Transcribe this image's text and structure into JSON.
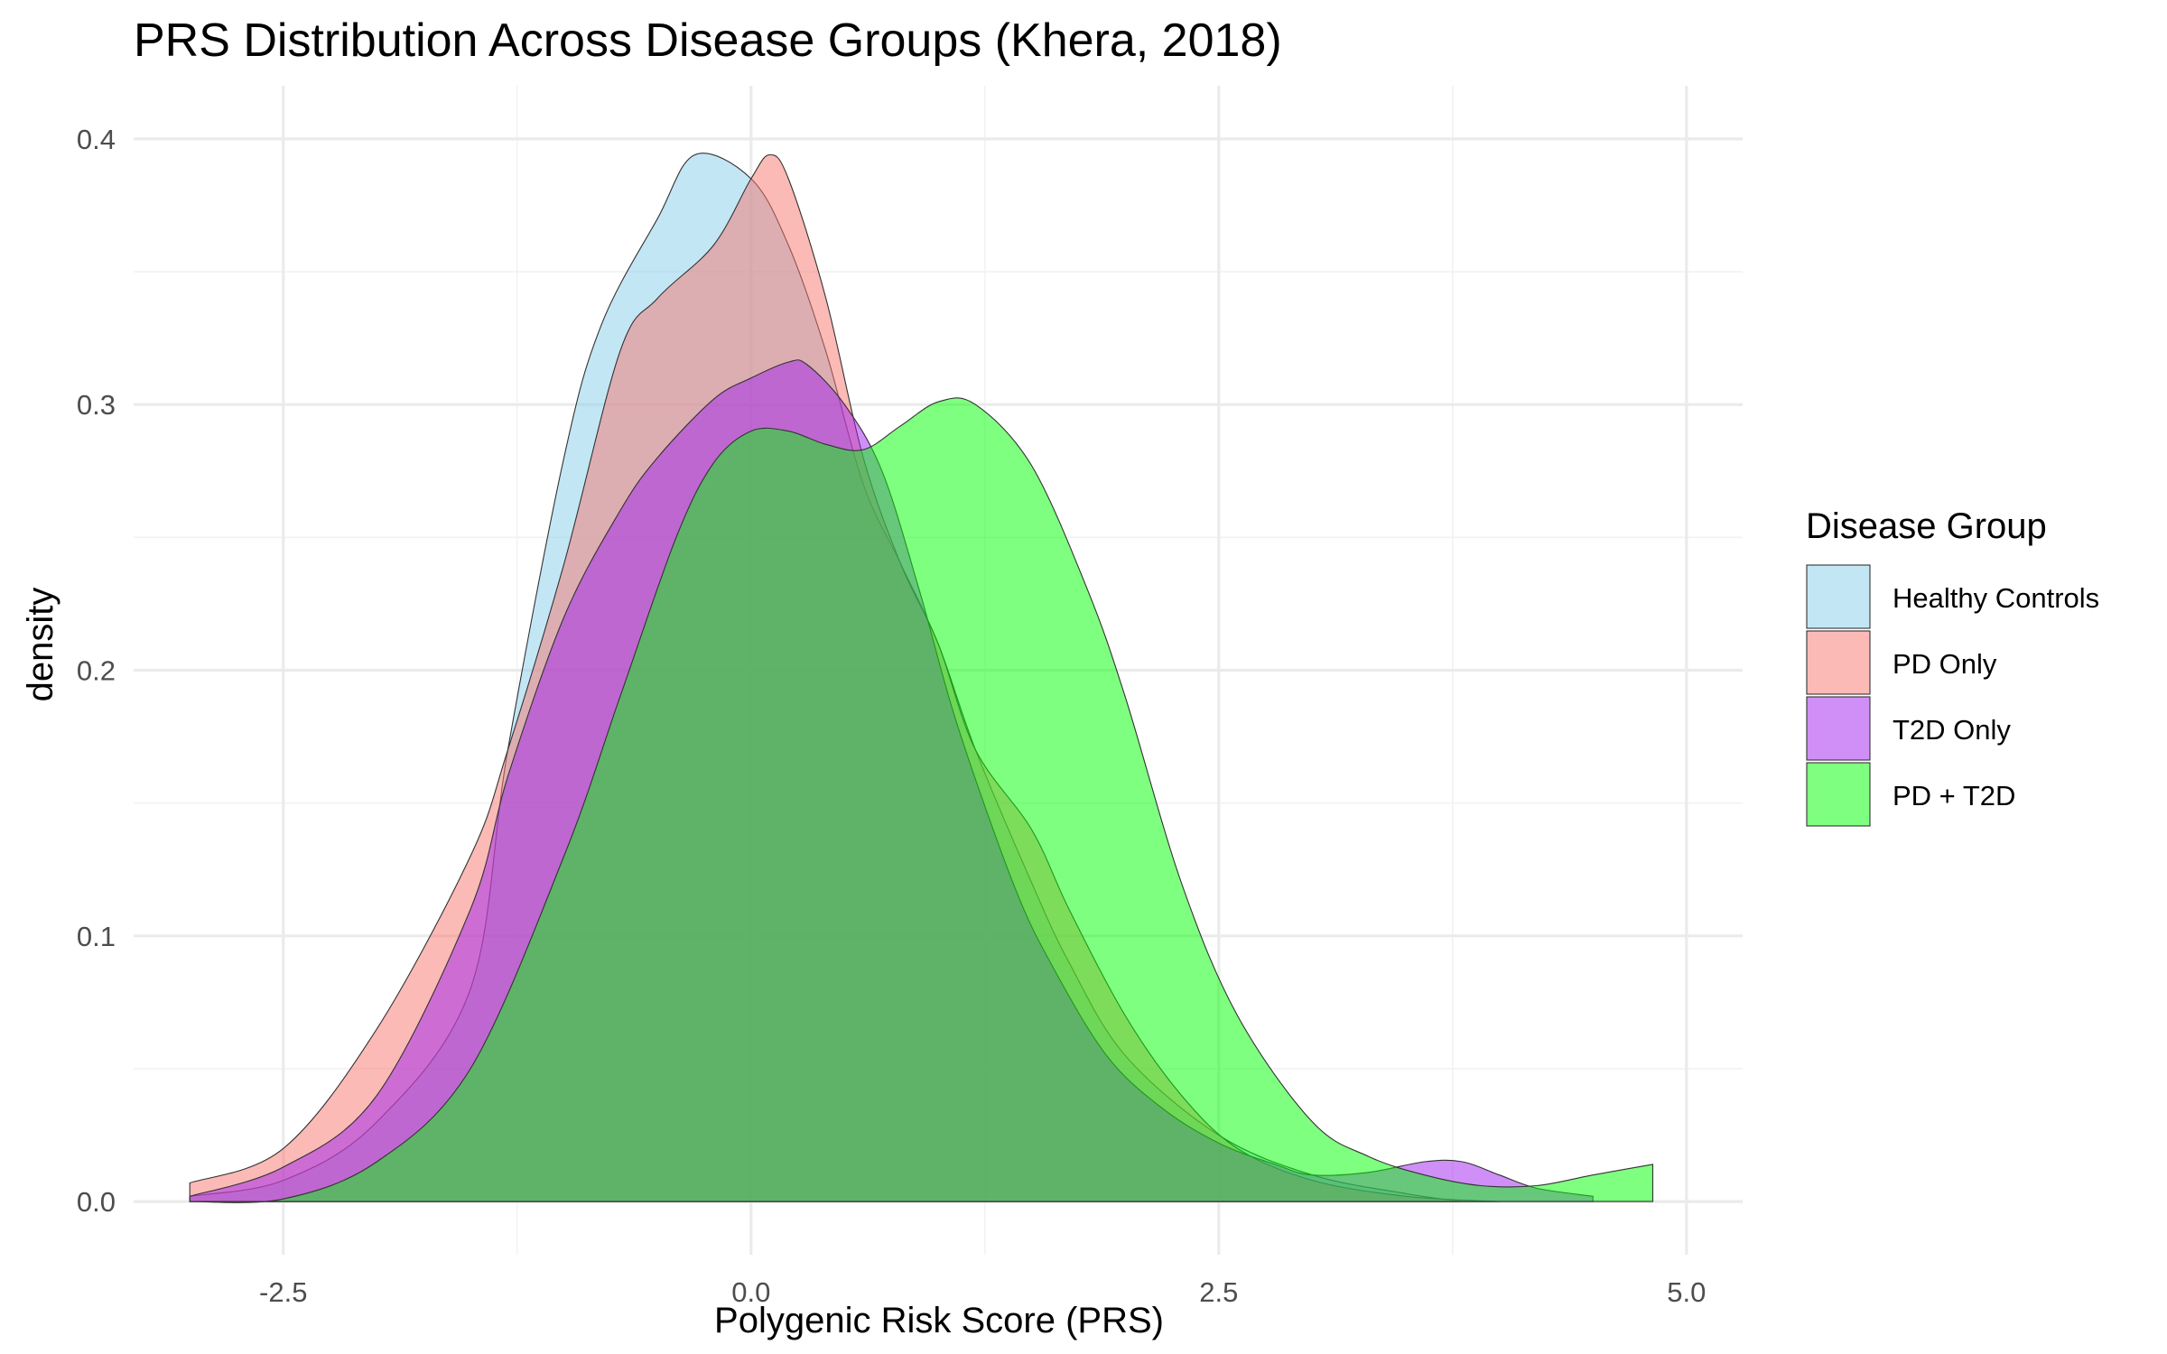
{
  "chart_data": {
    "type": "area",
    "title": "PRS Distribution Across Disease Groups (Khera, 2018)",
    "xlabel": "Polygenic Risk Score (PRS)",
    "ylabel": "density",
    "xlim": [
      -3.3,
      5.3
    ],
    "ylim": [
      -0.02,
      0.42
    ],
    "x_ticks": [
      -2.5,
      0.0,
      2.5,
      5.0
    ],
    "x_tick_labels": [
      "-2.5",
      "0.0",
      "2.5",
      "5.0"
    ],
    "y_ticks": [
      0.0,
      0.1,
      0.2,
      0.3,
      0.4
    ],
    "y_tick_labels": [
      "0.0",
      "0.1",
      "0.2",
      "0.3",
      "0.4"
    ],
    "grid": true,
    "legend": {
      "title": "Disease Group",
      "position": "right"
    },
    "series": [
      {
        "name": "Healthy Controls",
        "color": "#87ceeb",
        "opacity": 0.5,
        "x": [
          -3.0,
          -2.5,
          -2.0,
          -1.5,
          -1.3,
          -1.0,
          -0.8,
          -0.5,
          -0.3,
          0.0,
          0.2,
          0.4,
          0.6,
          0.8,
          1.0,
          1.2,
          1.5,
          1.7,
          2.0,
          2.5,
          3.0,
          3.5,
          3.8
        ],
        "y": [
          0.002,
          0.008,
          0.03,
          0.08,
          0.17,
          0.28,
          0.33,
          0.37,
          0.394,
          0.385,
          0.36,
          0.32,
          0.27,
          0.24,
          0.21,
          0.17,
          0.12,
          0.09,
          0.055,
          0.025,
          0.01,
          0.003,
          0.0
        ]
      },
      {
        "name": "PD Only",
        "color": "#f8766d",
        "opacity": 0.5,
        "x": [
          -3.0,
          -2.5,
          -2.0,
          -1.5,
          -1.3,
          -1.0,
          -0.7,
          -0.5,
          -0.2,
          0.0,
          0.1,
          0.2,
          0.4,
          0.6,
          0.8,
          1.0,
          1.2,
          1.5,
          1.7,
          2.0,
          2.3,
          2.6,
          3.0,
          3.5,
          4.0
        ],
        "y": [
          0.007,
          0.02,
          0.065,
          0.13,
          0.17,
          0.24,
          0.32,
          0.34,
          0.36,
          0.385,
          0.394,
          0.385,
          0.34,
          0.28,
          0.24,
          0.21,
          0.17,
          0.14,
          0.11,
          0.07,
          0.04,
          0.02,
          0.008,
          0.002,
          0.0
        ]
      },
      {
        "name": "T2D Only",
        "color": "#a020f0",
        "opacity": 0.5,
        "x": [
          -3.0,
          -2.5,
          -2.0,
          -1.5,
          -1.3,
          -1.0,
          -0.7,
          -0.5,
          -0.2,
          0.0,
          0.2,
          0.3,
          0.5,
          0.7,
          0.9,
          1.1,
          1.4,
          1.6,
          1.9,
          2.2,
          2.5,
          2.8,
          3.0,
          3.3,
          3.6,
          3.8,
          4.0,
          4.2,
          4.5
        ],
        "y": [
          0.002,
          0.013,
          0.04,
          0.11,
          0.16,
          0.22,
          0.26,
          0.28,
          0.302,
          0.31,
          0.316,
          0.315,
          0.3,
          0.275,
          0.23,
          0.18,
          0.12,
          0.09,
          0.055,
          0.035,
          0.022,
          0.014,
          0.01,
          0.011,
          0.015,
          0.015,
          0.01,
          0.005,
          0.002
        ]
      },
      {
        "name": "PD + T2D",
        "color": "#00ff00",
        "opacity": 0.5,
        "x": [
          -3.0,
          -2.5,
          -2.0,
          -1.5,
          -1.0,
          -0.7,
          -0.4,
          -0.2,
          0.0,
          0.2,
          0.4,
          0.6,
          0.8,
          1.0,
          1.2,
          1.5,
          1.8,
          2.0,
          2.3,
          2.6,
          3.0,
          3.3,
          3.6,
          3.9,
          4.2,
          4.5,
          4.82
        ],
        "y": [
          0.0,
          0.001,
          0.015,
          0.05,
          0.13,
          0.19,
          0.25,
          0.278,
          0.29,
          0.29,
          0.285,
          0.283,
          0.292,
          0.301,
          0.3,
          0.277,
          0.23,
          0.19,
          0.12,
          0.07,
          0.03,
          0.017,
          0.01,
          0.006,
          0.006,
          0.01,
          0.014
        ]
      }
    ]
  }
}
